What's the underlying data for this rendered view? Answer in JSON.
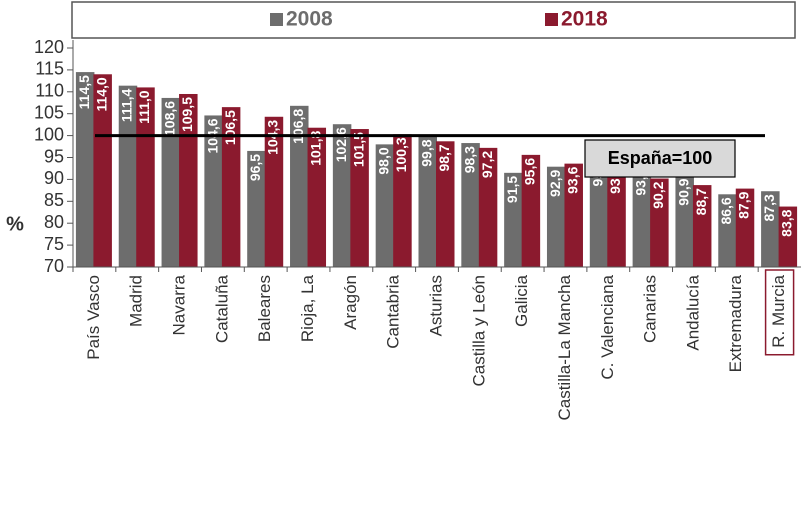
{
  "chart_data": {
    "type": "bar",
    "categories": [
      "País Vasco",
      "Madrid",
      "Navarra",
      "Cataluña",
      "Baleares",
      "Rioja, La",
      "Aragón",
      "Cantabria",
      "Asturias",
      "Castilla y León",
      "Galicia",
      "Castilla-La Mancha",
      "C. Valenciana",
      "Canarias",
      "Andalucía",
      "Extremadura",
      "R. Murcia"
    ],
    "series": [
      {
        "name": "2008",
        "color": "#6d6d6d",
        "values": [
          114.5,
          111.4,
          108.6,
          104.6,
          96.5,
          106.8,
          102.6,
          98.0,
          99.8,
          98.3,
          91.5,
          92.9,
          95.3,
          93.2,
          90.9,
          86.6,
          87.3
        ],
        "value_labels": [
          "114,5",
          "111,4",
          "108,6",
          "104,6",
          "96,5",
          "106,8",
          "102,6",
          "98,0",
          "99,8",
          "98,3",
          "91,5",
          "92,9",
          "95,3",
          "93,2",
          "90,9",
          "86,6",
          "87,3"
        ]
      },
      {
        "name": "2018",
        "color": "#8b1a2e",
        "values": [
          114.0,
          111.0,
          109.5,
          106.5,
          104.3,
          101.8,
          101.5,
          100.3,
          98.7,
          97.2,
          95.6,
          93.6,
          93.6,
          90.2,
          88.7,
          87.9,
          83.8
        ],
        "value_labels": [
          "114,0",
          "111,0",
          "109,5",
          "106,5",
          "104,3",
          "101,8",
          "101,5",
          "100,3",
          "98,7",
          "97,2",
          "95,6",
          "93,6",
          "93,6",
          "90,2",
          "88,7",
          "87,9",
          "83,8"
        ]
      }
    ],
    "y_label": "%",
    "ylim": [
      70,
      120
    ],
    "yticks": [
      70,
      75,
      80,
      85,
      90,
      95,
      100,
      105,
      110,
      115,
      120
    ],
    "reference_line": 100,
    "annotation": "España=100",
    "legend": "top",
    "highlight_category": "R. Murcia"
  }
}
